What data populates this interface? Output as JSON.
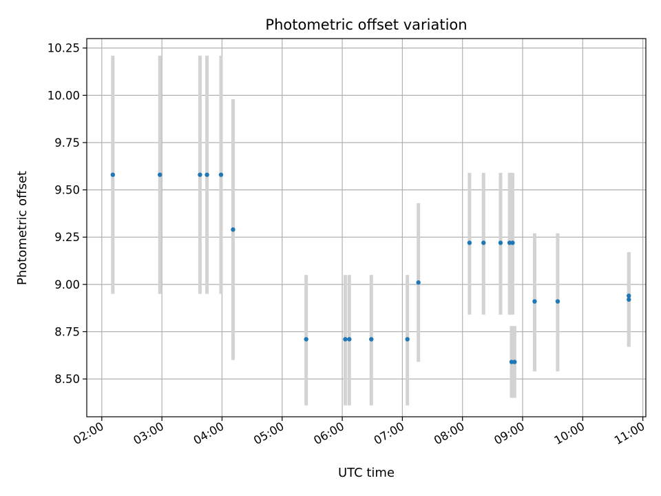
{
  "chart_data": {
    "type": "scatter",
    "title": "Photometric offset variation",
    "xlabel": "UTC time",
    "ylabel": "Photometric offset",
    "x_ticks": [
      "02:00",
      "03:00",
      "04:00",
      "05:00",
      "06:00",
      "07:00",
      "08:00",
      "09:00",
      "10:00",
      "11:00"
    ],
    "y_ticks": [
      "8.50",
      "8.75",
      "9.00",
      "9.25",
      "9.50",
      "9.75",
      "10.00",
      "10.25"
    ],
    "xlim": [
      "01:45",
      "11:03"
    ],
    "ylim": [
      8.3,
      10.3
    ],
    "grid": true,
    "colors": {
      "points": "#1f77b4",
      "errorbars": "#d3d3d3",
      "grid": "#b0b0b0"
    },
    "series": [
      {
        "points": [
          {
            "x": "02:11",
            "y": 9.58,
            "ylo": 8.95,
            "yhi": 10.21
          },
          {
            "x": "02:58",
            "y": 9.58,
            "ylo": 8.95,
            "yhi": 10.21
          },
          {
            "x": "03:38",
            "y": 9.58,
            "ylo": 8.95,
            "yhi": 10.21
          },
          {
            "x": "03:45",
            "y": 9.58,
            "ylo": 8.95,
            "yhi": 10.21
          },
          {
            "x": "03:59",
            "y": 9.58,
            "ylo": 8.95,
            "yhi": 10.21
          },
          {
            "x": "04:11",
            "y": 9.29,
            "ylo": 8.6,
            "yhi": 9.98
          },
          {
            "x": "05:24",
            "y": 8.71,
            "ylo": 8.36,
            "yhi": 9.05
          },
          {
            "x": "06:03",
            "y": 8.71,
            "ylo": 8.36,
            "yhi": 9.05
          },
          {
            "x": "06:07",
            "y": 8.71,
            "ylo": 8.36,
            "yhi": 9.05
          },
          {
            "x": "06:29",
            "y": 8.71,
            "ylo": 8.36,
            "yhi": 9.05
          },
          {
            "x": "07:05",
            "y": 8.71,
            "ylo": 8.36,
            "yhi": 9.05
          },
          {
            "x": "07:16",
            "y": 9.01,
            "ylo": 8.59,
            "yhi": 9.43
          },
          {
            "x": "08:07",
            "y": 9.22,
            "ylo": 8.84,
            "yhi": 9.59
          },
          {
            "x": "08:21",
            "y": 9.22,
            "ylo": 8.84,
            "yhi": 9.59
          },
          {
            "x": "08:38",
            "y": 9.22,
            "ylo": 8.84,
            "yhi": 9.59
          },
          {
            "x": "08:47",
            "y": 9.22,
            "ylo": 8.84,
            "yhi": 9.59
          },
          {
            "x": "08:50",
            "y": 9.22,
            "ylo": 8.84,
            "yhi": 9.59
          },
          {
            "x": "08:49",
            "y": 8.59,
            "ylo": 8.4,
            "yhi": 8.78
          },
          {
            "x": "08:52",
            "y": 8.59,
            "ylo": 8.4,
            "yhi": 8.78
          },
          {
            "x": "09:12",
            "y": 8.91,
            "ylo": 8.54,
            "yhi": 9.27
          },
          {
            "x": "09:35",
            "y": 8.91,
            "ylo": 8.54,
            "yhi": 9.27
          },
          {
            "x": "10:46",
            "y": 8.94,
            "ylo": 8.67,
            "yhi": 9.17
          },
          {
            "x": "10:46",
            "y": 8.92,
            "ylo": 8.67,
            "yhi": 9.17
          }
        ]
      }
    ]
  }
}
